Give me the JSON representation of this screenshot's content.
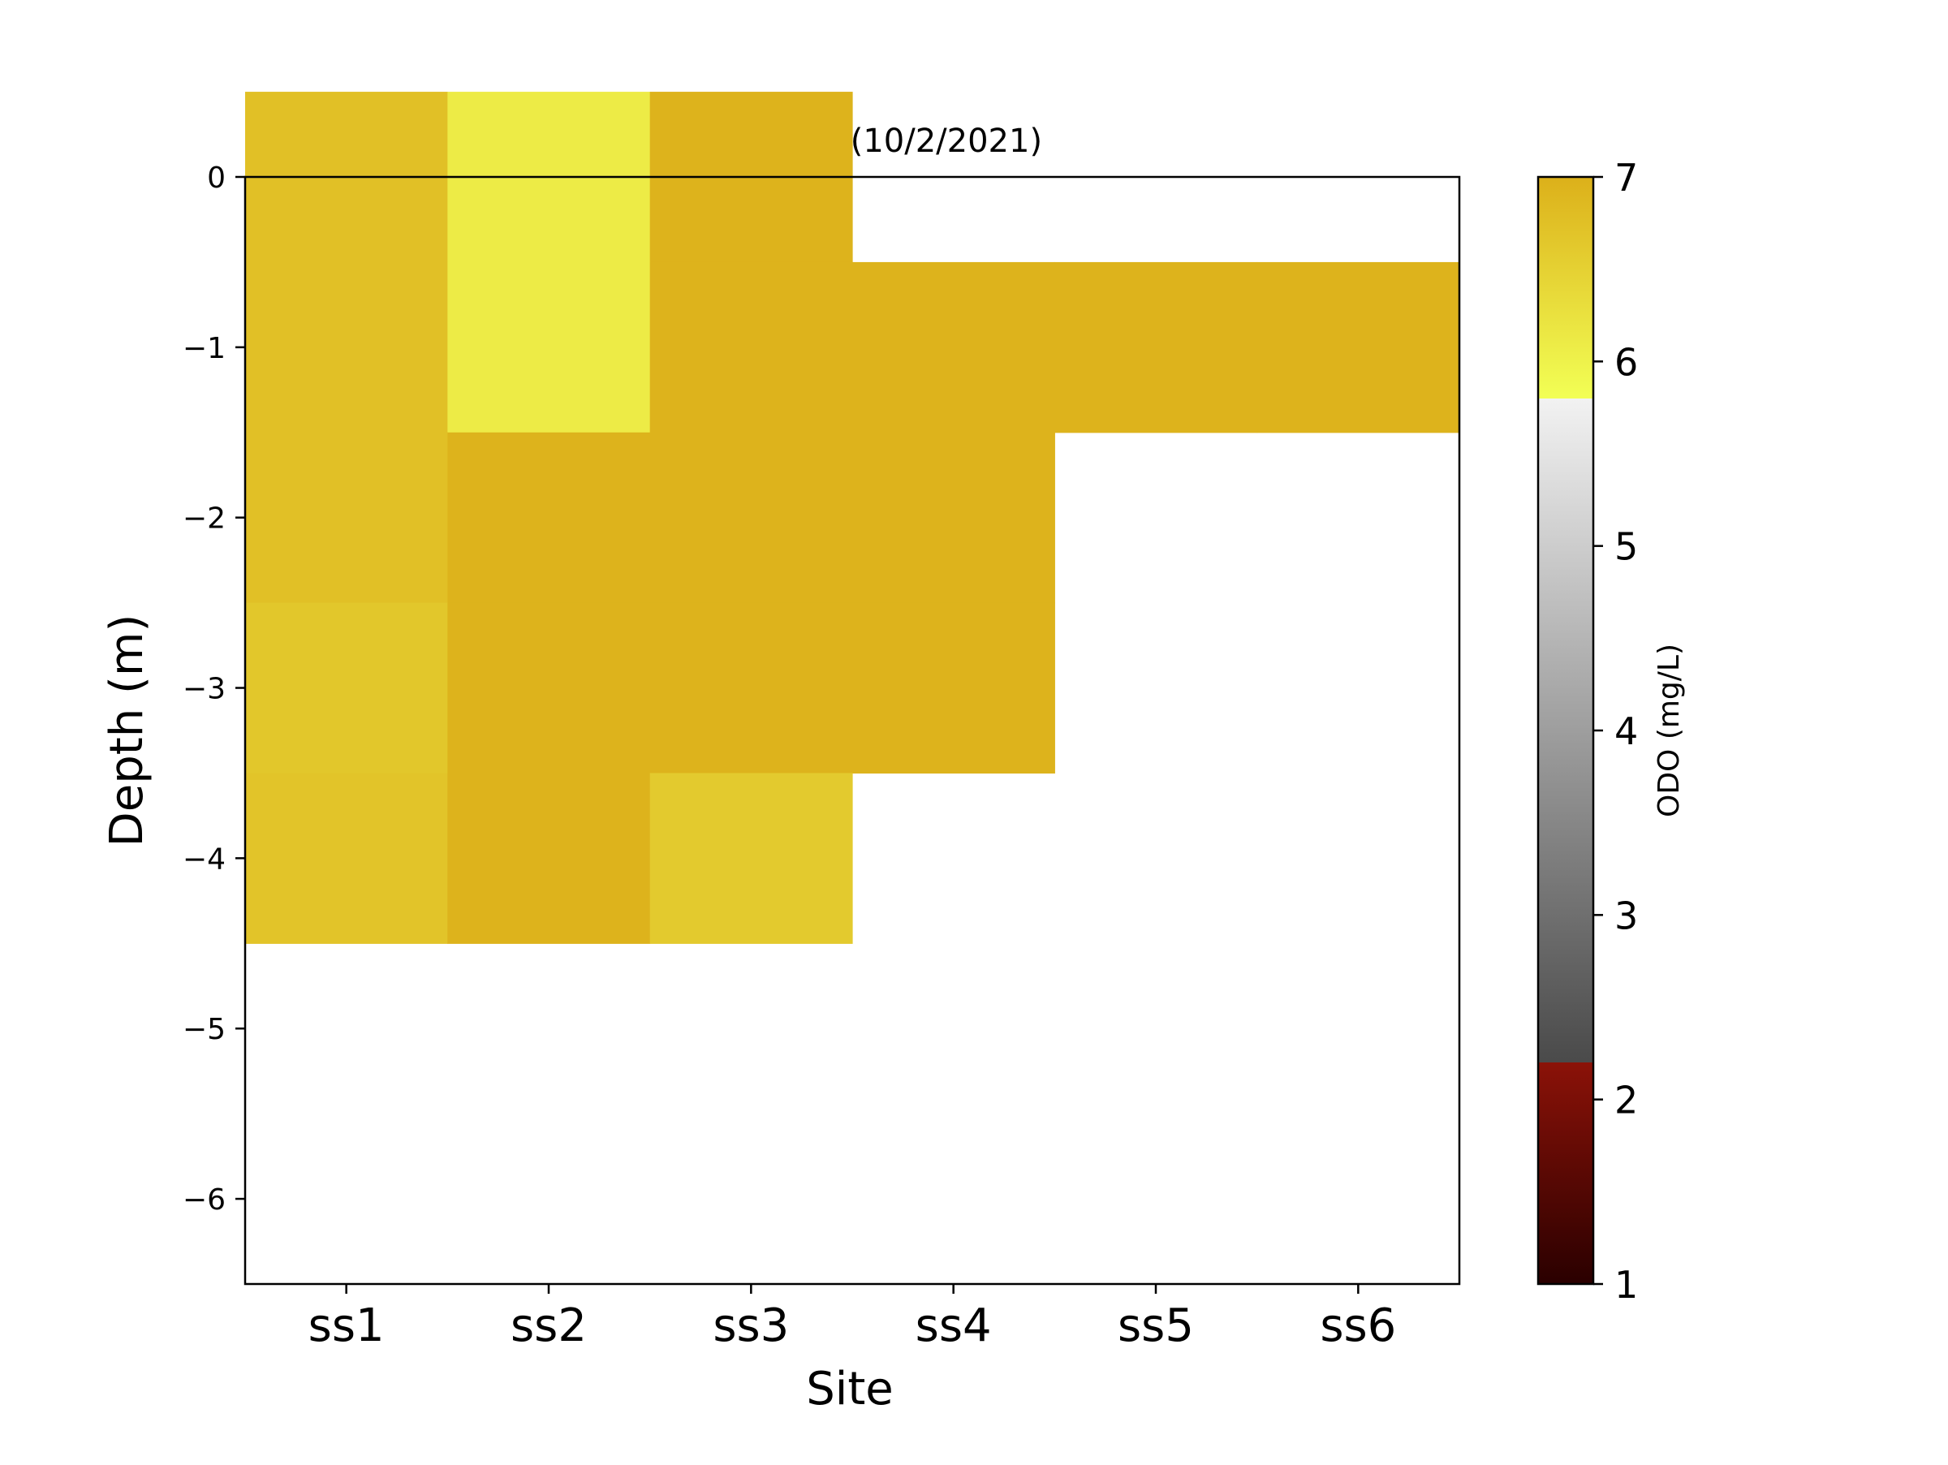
{
  "chart_data": {
    "type": "heatmap",
    "title": "ODO (mg/L)(10/2/2021)",
    "xlabel": "Site",
    "ylabel": "Depth (m)",
    "categories": [
      "ss1",
      "ss2",
      "ss3",
      "ss4",
      "ss5",
      "ss6"
    ],
    "y_ticks": [
      0,
      -1,
      -2,
      -3,
      -4,
      -5,
      -6
    ],
    "y_tick_labels": [
      "0",
      "−1",
      "−2",
      "−3",
      "−4",
      "−5",
      "−6"
    ],
    "ylim": [
      -6.5,
      0
    ],
    "depths": [
      0,
      -1,
      -2,
      -3,
      -4
    ],
    "values": [
      [
        6.75,
        6.1,
        6.95,
        null,
        null,
        null
      ],
      [
        6.75,
        6.1,
        6.95,
        6.95,
        6.95,
        6.95
      ],
      [
        6.75,
        6.95,
        6.95,
        6.95,
        null,
        null
      ],
      [
        6.65,
        6.95,
        6.95,
        6.95,
        null,
        null
      ],
      [
        6.7,
        6.95,
        6.6,
        null,
        null,
        null
      ]
    ],
    "colorbar": {
      "label": "ODO (mg/L)",
      "range": [
        1,
        7
      ],
      "ticks": [
        1,
        2,
        3,
        4,
        5,
        6,
        7
      ],
      "tick_labels": [
        "1",
        "2",
        "3",
        "4",
        "5",
        "6",
        "7"
      ]
    },
    "colors": {
      "low_dark": "#2a0000",
      "low_red": "#8b1208",
      "gray_dark": "#4a4a4a",
      "gray_light": "#f2f2f2",
      "yellow_bright": "#f2ff55",
      "gold": "#dcb01a"
    },
    "grid": false,
    "legend": "colorbar-right"
  }
}
